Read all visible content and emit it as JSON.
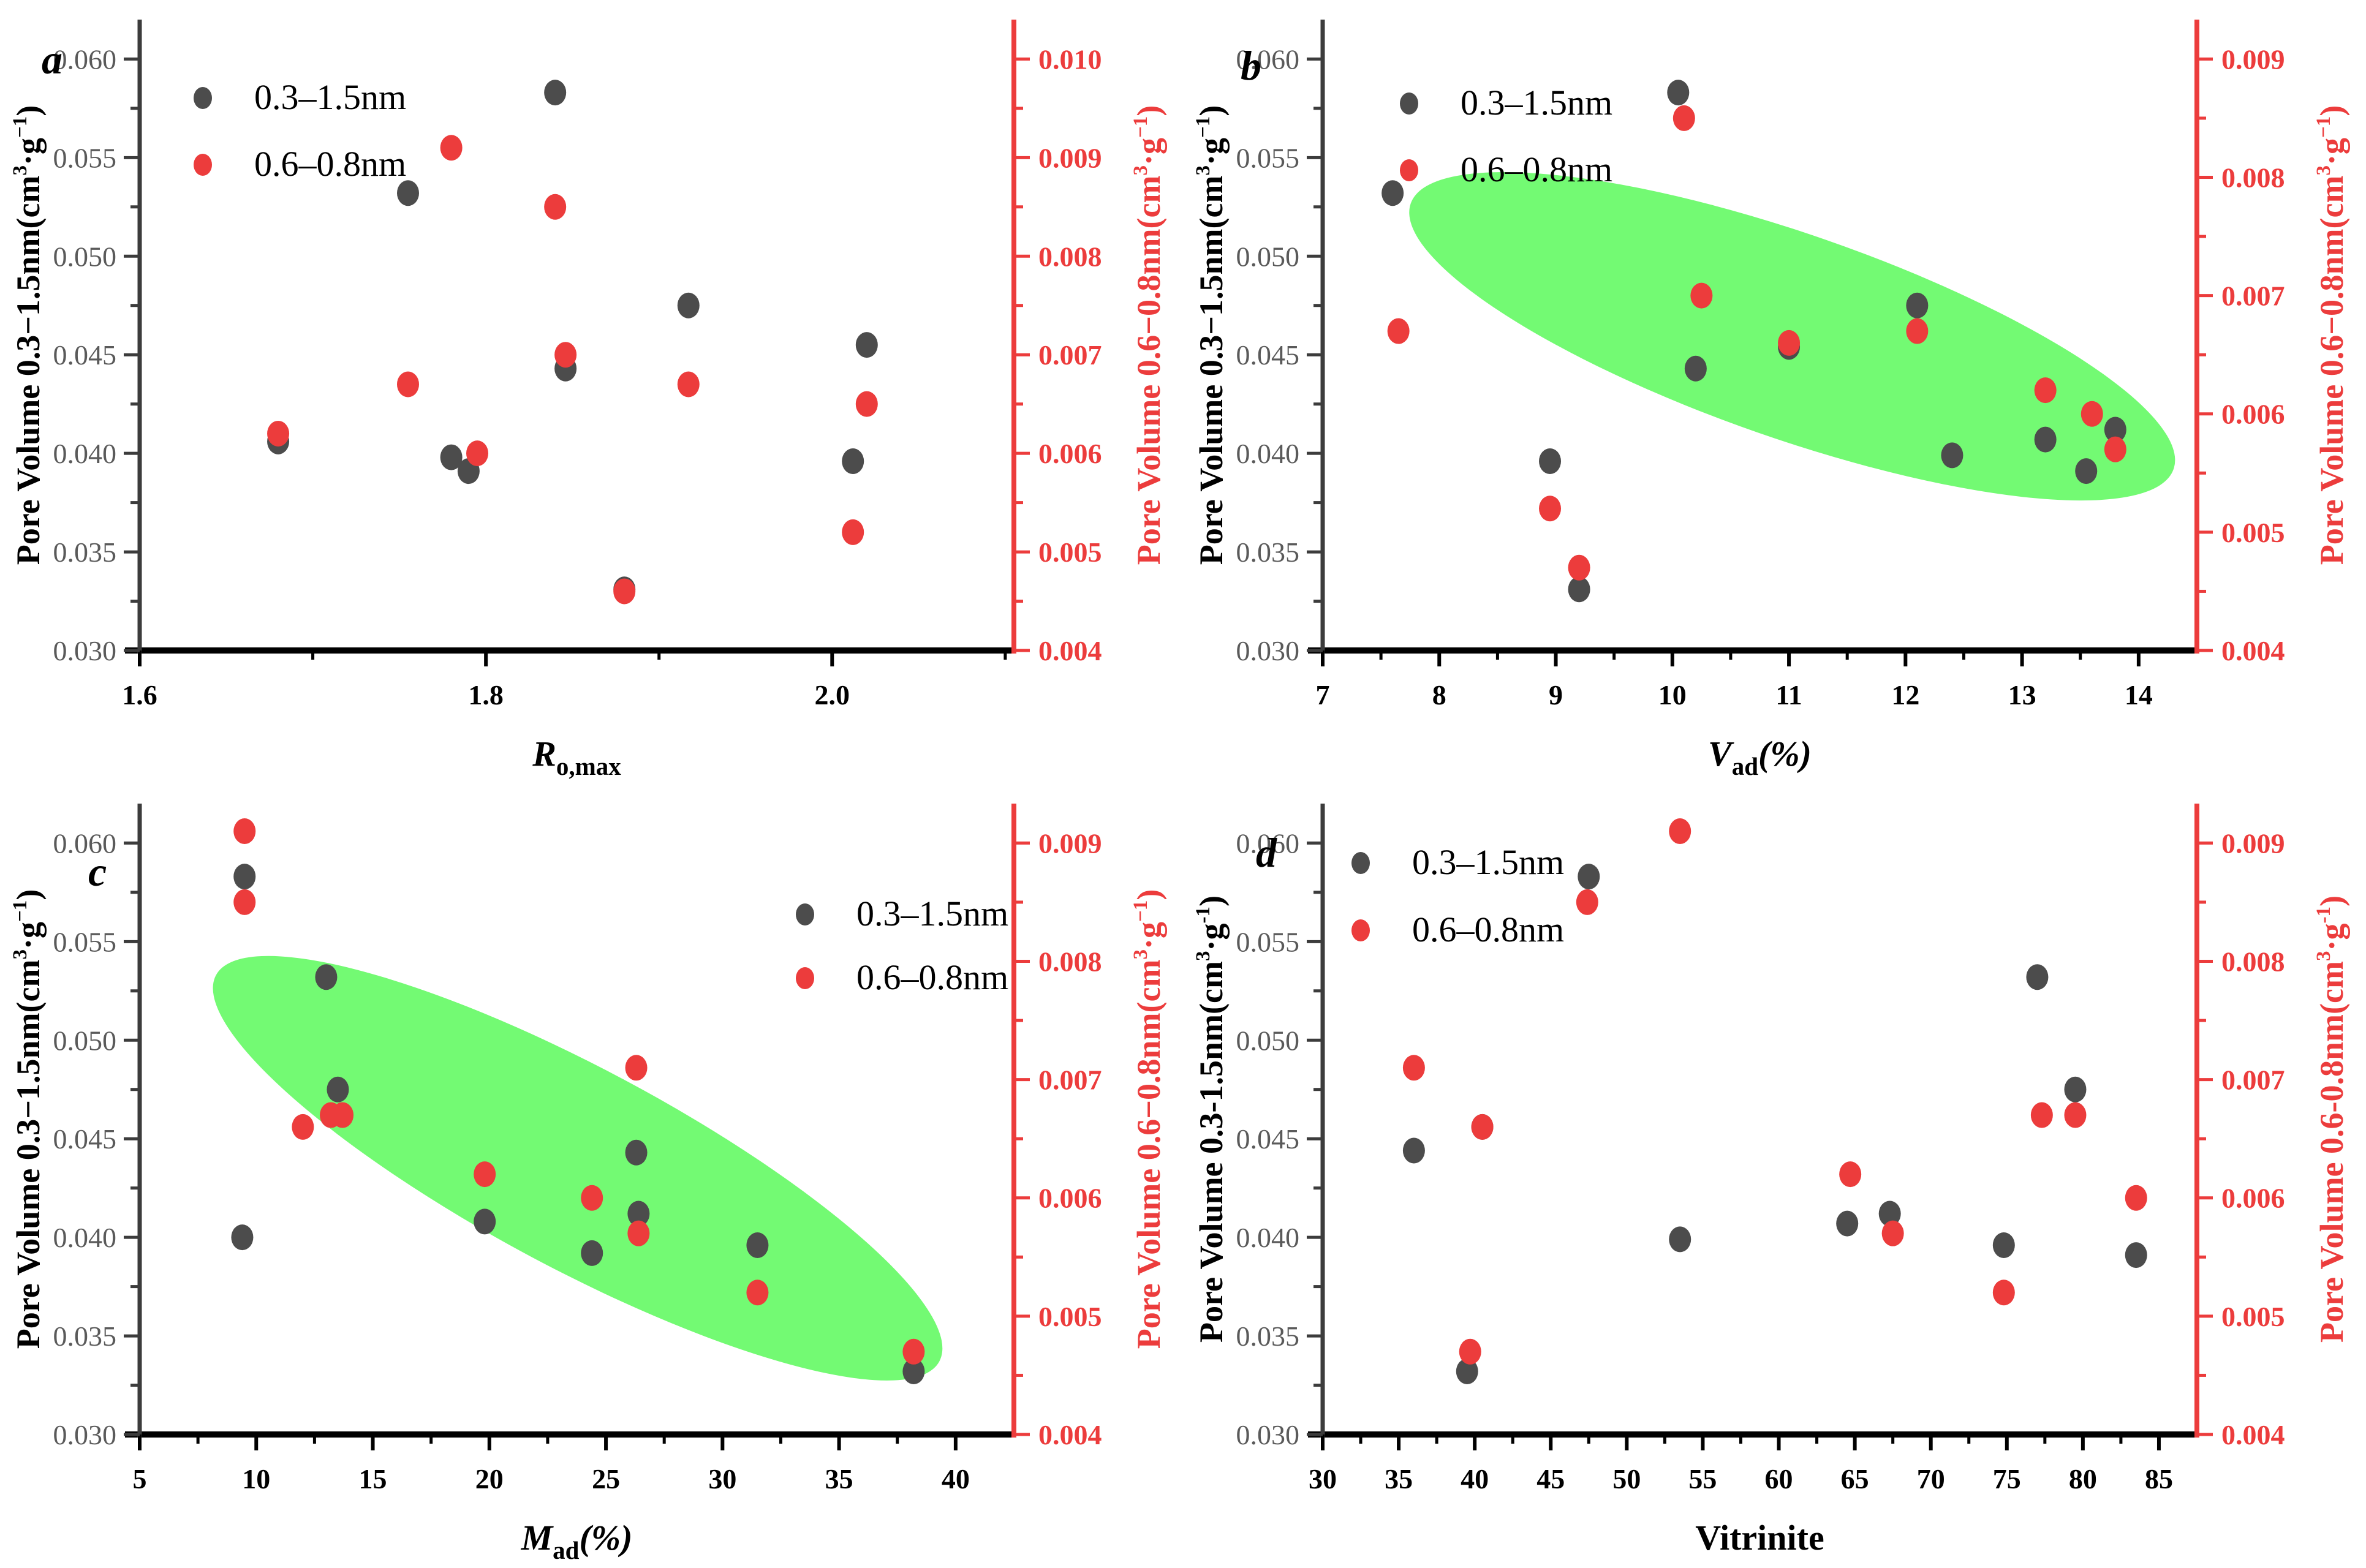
{
  "figure_caption": "",
  "legend": {
    "black_label": "0.3–1.5nm",
    "red_label": "0.6–0.8nm"
  },
  "colors": {
    "background": "#ffffff",
    "black_series": "#4c4c4c",
    "red_series": "#ec3c3c",
    "ellipse_fill": "#73fa73",
    "left_axis": "#3c3c3c",
    "bottom_axis": "#000000",
    "right_axis": "#ec3c3c",
    "left_tick_label": "#5a5a5a",
    "x_tick_label": "#000000",
    "right_tick_label": "#ec3c3c"
  },
  "chart_data": [
    {
      "id": "a",
      "letter": "a",
      "type": "scatter",
      "legend_position": "top-left",
      "x_axis": {
        "label_parts": [
          {
            "t": "R",
            "s": "it"
          },
          {
            "t": "o,max",
            "s": "sub"
          }
        ],
        "range": [
          1.6,
          2.105
        ],
        "major_values": [
          1.6,
          1.8,
          2.0
        ],
        "major_labels": [
          "1.6",
          "1.8",
          "2.0"
        ],
        "minor_values": [
          1.7,
          1.9,
          2.1
        ]
      },
      "y_left": {
        "label_parts": [
          {
            "t": "Pore Volume 0.3−1.5nm(cm"
          },
          {
            "t": "3",
            "s": "sup"
          },
          {
            "t": "·g"
          },
          {
            "t": "−1",
            "s": "sup"
          },
          {
            "t": ")"
          }
        ],
        "range": [
          0.03,
          0.062
        ],
        "major_values": [
          0.03,
          0.035,
          0.04,
          0.045,
          0.05,
          0.055,
          0.06
        ],
        "major_labels": [
          "0.030",
          "0.035",
          "0.040",
          "0.045",
          "0.050",
          "0.055",
          "0.060"
        ],
        "minor_values": [
          0.0325,
          0.0375,
          0.0425,
          0.0475,
          0.0525,
          0.0575
        ]
      },
      "y_right": {
        "label_parts": [
          {
            "t": "Pore Volume 0.6−0.8nm(cm"
          },
          {
            "t": "3",
            "s": "sup"
          },
          {
            "t": "·g"
          },
          {
            "t": "−1",
            "s": "sup"
          },
          {
            "t": ")"
          }
        ],
        "range": [
          0.004,
          0.0104
        ],
        "major_values": [
          0.004,
          0.005,
          0.006,
          0.007,
          0.008,
          0.009,
          0.01
        ],
        "major_labels": [
          "0.004",
          "0.005",
          "0.006",
          "0.007",
          "0.008",
          "0.009",
          "0.010"
        ],
        "minor_values": [
          0.0045,
          0.0055,
          0.0065,
          0.0075,
          0.0085,
          0.0095
        ]
      },
      "highlight_ellipse": null,
      "series": [
        {
          "name": "0.3–1.5nm",
          "axis": "left",
          "points": [
            [
              1.68,
              0.0406
            ],
            [
              1.755,
              0.0532
            ],
            [
              1.78,
              0.0398
            ],
            [
              1.79,
              0.0391
            ],
            [
              1.84,
              0.0583
            ],
            [
              1.846,
              0.0443
            ],
            [
              1.88,
              0.0331
            ],
            [
              1.917,
              0.0475
            ],
            [
              2.012,
              0.0396
            ],
            [
              2.02,
              0.0455
            ]
          ]
        },
        {
          "name": "0.6–0.8nm",
          "axis": "right",
          "points": [
            [
              1.68,
              0.0062
            ],
            [
              1.755,
              0.0067
            ],
            [
              1.78,
              0.0091
            ],
            [
              1.795,
              0.006
            ],
            [
              1.84,
              0.0085
            ],
            [
              1.846,
              0.007
            ],
            [
              1.88,
              0.0046
            ],
            [
              1.917,
              0.0067
            ],
            [
              2.012,
              0.0052
            ],
            [
              2.02,
              0.0065
            ]
          ]
        }
      ]
    },
    {
      "id": "b",
      "letter": "b",
      "type": "scatter",
      "legend_position": "top-left",
      "x_axis": {
        "label_parts": [
          {
            "t": "V",
            "s": "it"
          },
          {
            "t": "ad",
            "s": "sub"
          },
          {
            "t": "(%)",
            "s": "it"
          }
        ],
        "range": [
          7,
          14.5
        ],
        "major_values": [
          7,
          8,
          9,
          10,
          11,
          12,
          13,
          14
        ],
        "major_labels": [
          "7",
          "8",
          "9",
          "10",
          "11",
          "12",
          "13",
          "14"
        ],
        "minor_values": [
          7.5,
          8.5,
          9.5,
          10.5,
          11.5,
          12.5,
          13.5
        ]
      },
      "y_left": {
        "label_parts": [
          {
            "t": "Pore Volume 0.3−1.5nm(cm"
          },
          {
            "t": "3",
            "s": "sup"
          },
          {
            "t": "·g"
          },
          {
            "t": "−1",
            "s": "sup"
          },
          {
            "t": ")"
          }
        ],
        "range": [
          0.03,
          0.062
        ],
        "major_values": [
          0.03,
          0.035,
          0.04,
          0.045,
          0.05,
          0.055,
          0.06
        ],
        "major_labels": [
          "0.030",
          "0.035",
          "0.040",
          "0.045",
          "0.050",
          "0.055",
          "0.060"
        ],
        "minor_values": [
          0.0325,
          0.0375,
          0.0425,
          0.0475,
          0.0525,
          0.0575
        ]
      },
      "y_right": {
        "label_parts": [
          {
            "t": "Pore Volume 0.6−0.8nm(cm"
          },
          {
            "t": "3",
            "s": "sup"
          },
          {
            "t": "·g"
          },
          {
            "t": "−1",
            "s": "sup"
          },
          {
            "t": ")"
          }
        ],
        "range": [
          0.004,
          0.0093333
        ],
        "major_values": [
          0.004,
          0.005,
          0.006,
          0.007,
          0.008,
          0.009
        ],
        "major_labels": [
          "0.004",
          "0.005",
          "0.006",
          "0.007",
          "0.008",
          "0.009"
        ],
        "minor_values": [
          0.0045,
          0.0055,
          0.0065,
          0.0075,
          0.0085
        ]
      },
      "highlight_ellipse": {
        "fx": 0.537,
        "fy": 0.502,
        "w_frac": 0.924,
        "h_frac": 0.324,
        "angle_deg": 19.2
      },
      "series": [
        {
          "name": "0.3–1.5nm",
          "axis": "left",
          "points": [
            [
              7.6,
              0.0532
            ],
            [
              8.95,
              0.0396
            ],
            [
              9.2,
              0.0331
            ],
            [
              10.05,
              0.0583
            ],
            [
              10.2,
              0.0443
            ],
            [
              11.0,
              0.0454
            ],
            [
              12.1,
              0.0475
            ],
            [
              12.4,
              0.0399
            ],
            [
              13.2,
              0.0407
            ],
            [
              13.55,
              0.0391
            ],
            [
              13.8,
              0.0412
            ]
          ]
        },
        {
          "name": "0.6–0.8nm",
          "axis": "right",
          "points": [
            [
              7.65,
              0.0067
            ],
            [
              8.95,
              0.0052
            ],
            [
              9.2,
              0.0047
            ],
            [
              10.1,
              0.0085
            ],
            [
              10.25,
              0.007
            ],
            [
              11.0,
              0.0066
            ],
            [
              12.1,
              0.0067
            ],
            [
              13.2,
              0.0062
            ],
            [
              13.6,
              0.006
            ],
            [
              13.8,
              0.0057
            ]
          ]
        }
      ]
    },
    {
      "id": "c",
      "letter": "c",
      "type": "scatter",
      "legend_position": "top-right",
      "x_axis": {
        "label_parts": [
          {
            "t": "M",
            "s": "it"
          },
          {
            "t": "ad",
            "s": "sub"
          },
          {
            "t": "(%)",
            "s": "it"
          }
        ],
        "range": [
          5,
          42.5
        ],
        "major_values": [
          5,
          10,
          15,
          20,
          25,
          30,
          35,
          40
        ],
        "major_labels": [
          "5",
          "10",
          "15",
          "20",
          "25",
          "30",
          "35",
          "40"
        ],
        "minor_values": [
          7.5,
          12.5,
          17.5,
          22.5,
          27.5,
          32.5,
          37.5
        ]
      },
      "y_left": {
        "label_parts": [
          {
            "t": "Pore Volume 0.3−1.5nm(cm"
          },
          {
            "t": "3",
            "s": "sup"
          },
          {
            "t": "·g"
          },
          {
            "t": "−1",
            "s": "sup"
          },
          {
            "t": ")"
          }
        ],
        "range": [
          0.03,
          0.062
        ],
        "major_values": [
          0.03,
          0.035,
          0.04,
          0.045,
          0.05,
          0.055,
          0.06
        ],
        "major_labels": [
          "0.030",
          "0.035",
          "0.040",
          "0.045",
          "0.050",
          "0.055",
          "0.060"
        ],
        "minor_values": [
          0.0325,
          0.0375,
          0.0425,
          0.0475,
          0.0525,
          0.0575
        ]
      },
      "y_right": {
        "label_parts": [
          {
            "t": "Pore Volume 0.6−0.8nm(cm"
          },
          {
            "t": "3",
            "s": "sup"
          },
          {
            "t": "·g"
          },
          {
            "t": "−1",
            "s": "sup"
          },
          {
            "t": ")"
          }
        ],
        "range": [
          0.004,
          0.0093333
        ],
        "major_values": [
          0.004,
          0.005,
          0.006,
          0.007,
          0.008,
          0.009
        ],
        "major_labels": [
          "0.004",
          "0.005",
          "0.006",
          "0.007",
          "0.008",
          "0.009"
        ],
        "minor_values": [
          0.0045,
          0.0055,
          0.0065,
          0.0075,
          0.0085
        ]
      },
      "highlight_ellipse": {
        "fx": 0.501,
        "fy": 0.578,
        "w_frac": 0.938,
        "h_frac": 0.317,
        "angle_deg": 28.1
      },
      "series": [
        {
          "name": "0.3–1.5nm",
          "axis": "left",
          "points": [
            [
              9.4,
              0.04
            ],
            [
              9.5,
              0.0583
            ],
            [
              13.0,
              0.0532
            ],
            [
              13.5,
              0.0475
            ],
            [
              19.8,
              0.0408
            ],
            [
              24.4,
              0.0392
            ],
            [
              26.3,
              0.0443
            ],
            [
              26.4,
              0.0412
            ],
            [
              31.5,
              0.0396
            ],
            [
              38.2,
              0.0332
            ]
          ]
        },
        {
          "name": "0.6–0.8nm",
          "axis": "right",
          "points": [
            [
              9.5,
              0.0091
            ],
            [
              9.5,
              0.0085
            ],
            [
              12.0,
              0.0066
            ],
            [
              13.2,
              0.0067
            ],
            [
              13.7,
              0.0067
            ],
            [
              19.8,
              0.0062
            ],
            [
              24.4,
              0.006
            ],
            [
              26.3,
              0.0071
            ],
            [
              26.4,
              0.0057
            ],
            [
              31.5,
              0.0052
            ],
            [
              38.2,
              0.0047
            ]
          ]
        }
      ]
    },
    {
      "id": "d",
      "letter": "d",
      "type": "scatter",
      "legend_position": "top-left",
      "x_axis": {
        "label_parts": [
          {
            "t": "Vitrinite"
          }
        ],
        "range": [
          30,
          87.5
        ],
        "major_values": [
          30,
          35,
          40,
          45,
          50,
          55,
          60,
          65,
          70,
          75,
          80,
          85
        ],
        "major_labels": [
          "30",
          "35",
          "40",
          "45",
          "50",
          "55",
          "60",
          "65",
          "70",
          "75",
          "80",
          "85"
        ],
        "minor_values": [
          32.5,
          37.5,
          42.5,
          47.5,
          52.5,
          57.5,
          62.5,
          67.5,
          72.5,
          77.5,
          82.5
        ]
      },
      "y_left": {
        "label_parts": [
          {
            "t": "Pore Volume 0.3-1.5nm(cm"
          },
          {
            "t": "3",
            "s": "sup"
          },
          {
            "t": "·g"
          },
          {
            "t": "-1",
            "s": "sup"
          },
          {
            "t": ")"
          }
        ],
        "range": [
          0.03,
          0.062
        ],
        "major_values": [
          0.03,
          0.035,
          0.04,
          0.045,
          0.05,
          0.055,
          0.06
        ],
        "major_labels": [
          "0.030",
          "0.035",
          "0.040",
          "0.045",
          "0.050",
          "0.055",
          "0.060"
        ],
        "minor_values": [
          0.0325,
          0.0375,
          0.0425,
          0.0475,
          0.0525,
          0.0575
        ]
      },
      "y_right": {
        "label_parts": [
          {
            "t": "Pore Volume 0.6-0.8nm(cm"
          },
          {
            "t": "3",
            "s": "sup"
          },
          {
            "t": "·g"
          },
          {
            "t": "-1",
            "s": "sup"
          },
          {
            "t": ")"
          }
        ],
        "range": [
          0.004,
          0.0093333
        ],
        "major_values": [
          0.004,
          0.005,
          0.006,
          0.007,
          0.008,
          0.009
        ],
        "major_labels": [
          "0.004",
          "0.005",
          "0.006",
          "0.007",
          "0.008",
          "0.009"
        ],
        "minor_values": [
          0.0045,
          0.0055,
          0.0065,
          0.0075,
          0.0085
        ]
      },
      "highlight_ellipse": null,
      "series": [
        {
          "name": "0.3–1.5nm",
          "axis": "left",
          "points": [
            [
              36,
              0.0444
            ],
            [
              39.5,
              0.0332
            ],
            [
              40.5,
              0.0456
            ],
            [
              47.5,
              0.0583
            ],
            [
              53.5,
              0.0399
            ],
            [
              64.5,
              0.0407
            ],
            [
              67.3,
              0.0412
            ],
            [
              74.8,
              0.0396
            ],
            [
              77.0,
              0.0532
            ],
            [
              79.5,
              0.0475
            ],
            [
              83.5,
              0.0391
            ]
          ]
        },
        {
          "name": "0.6–0.8nm",
          "axis": "right",
          "points": [
            [
              36,
              0.0071
            ],
            [
              39.7,
              0.0047
            ],
            [
              40.5,
              0.0066
            ],
            [
              47.4,
              0.0085
            ],
            [
              53.5,
              0.0091
            ],
            [
              64.7,
              0.0062
            ],
            [
              67.5,
              0.0057
            ],
            [
              74.8,
              0.0052
            ],
            [
              77.3,
              0.0067
            ],
            [
              79.5,
              0.0067
            ],
            [
              83.5,
              0.006
            ]
          ]
        }
      ]
    }
  ]
}
